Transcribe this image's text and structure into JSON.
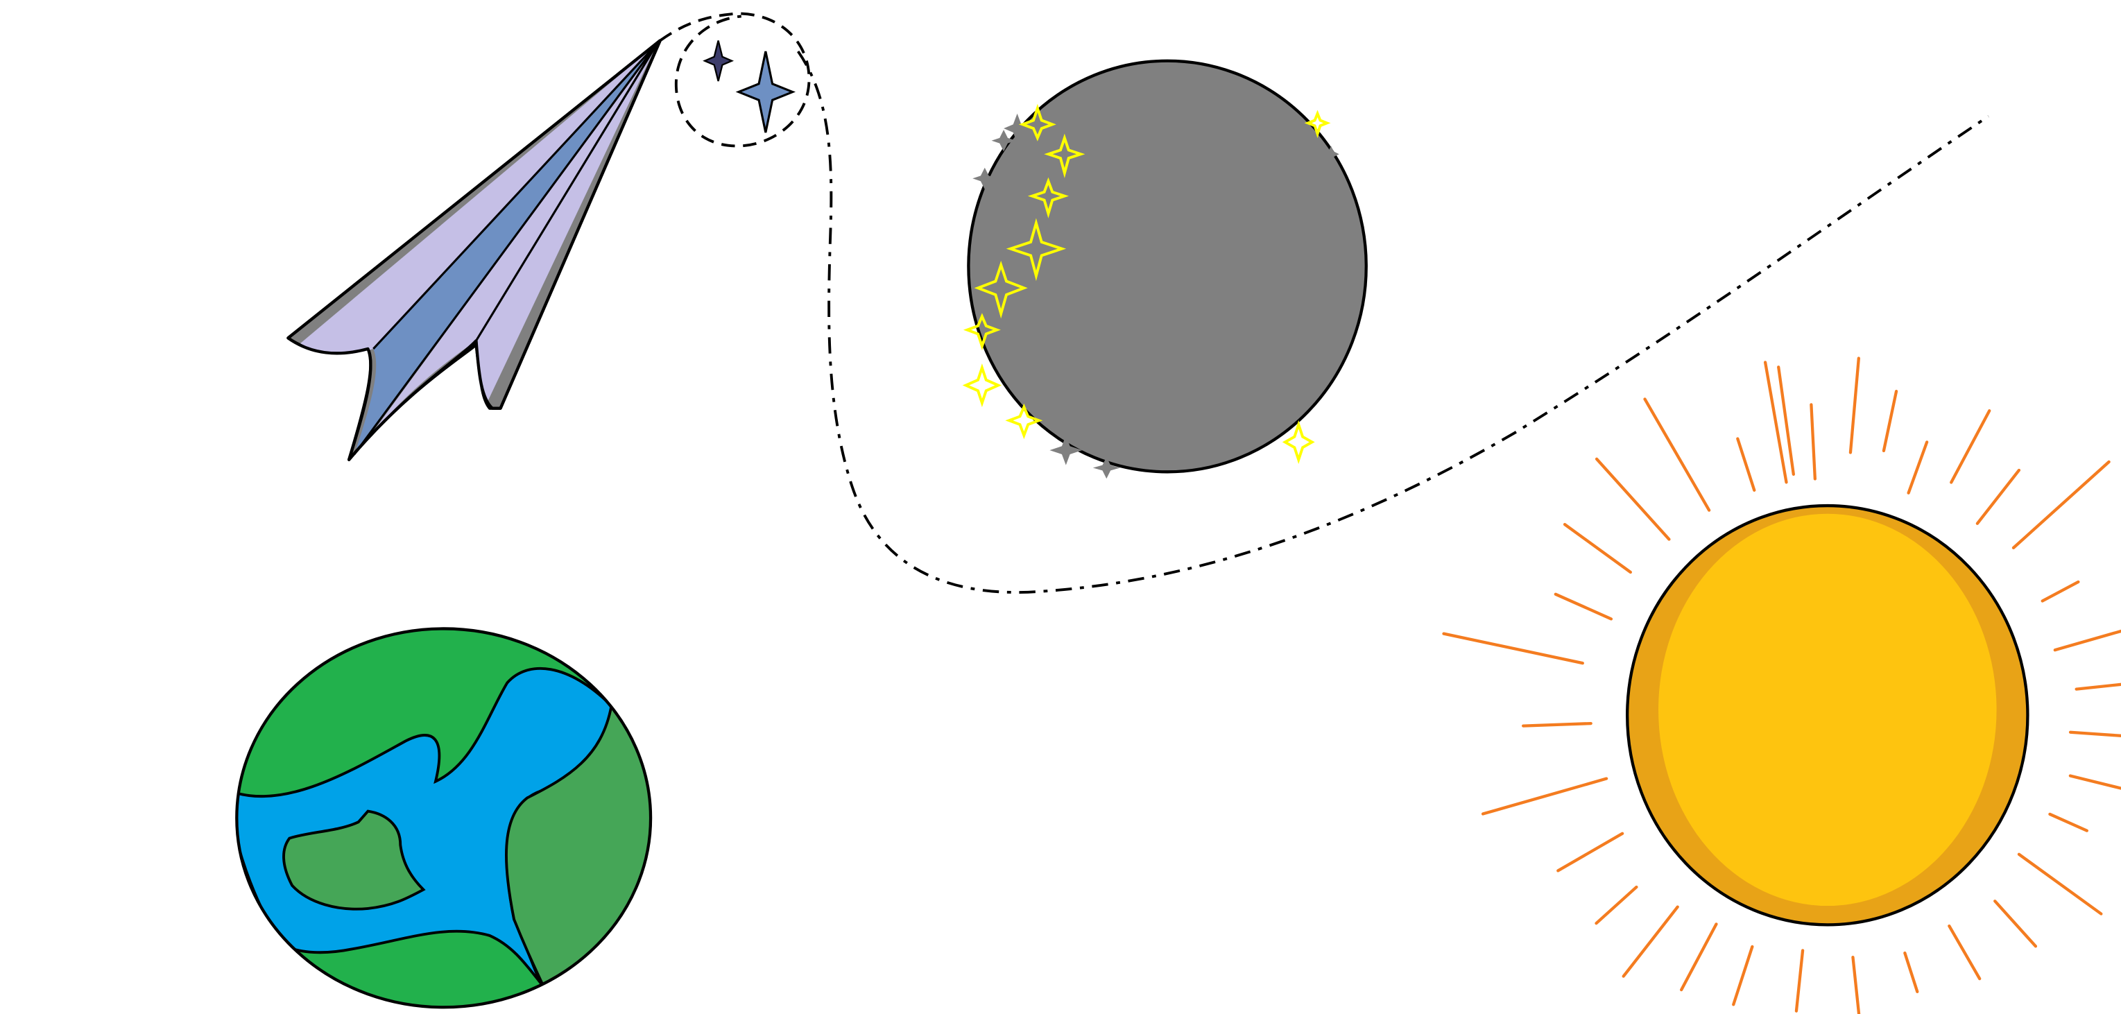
{
  "scene": {
    "background": "#ffffff",
    "elements": {
      "paper_plane": {
        "icon": "paper-plane-icon",
        "colors": {
          "outline": "#000000",
          "shade": "#808080",
          "light": "#c5bfe6",
          "center": "#6e90c3"
        }
      },
      "flight_path": {
        "icon": "dashed-trajectory",
        "color": "#000000"
      },
      "stars": {
        "icon": "four-point-star-icon",
        "dark": "#3d3d6b",
        "blue": "#6e90c3"
      },
      "moon": {
        "icon": "moon-icon",
        "colors": {
          "fill": "#808080",
          "outline": "#000000",
          "sparkle": "#ffff00",
          "gray_sparkle": "#808080"
        }
      },
      "earth": {
        "icon": "earth-icon",
        "colors": {
          "land": "#22b14c",
          "dark_land": "#45a657",
          "ocean": "#00a2e8",
          "outline": "#000000"
        }
      },
      "sun": {
        "icon": "sun-icon",
        "colors": {
          "outer": "#e8a317",
          "inner": "#fec40f",
          "rays": "#f47c20",
          "outline": "#000000"
        }
      }
    }
  }
}
